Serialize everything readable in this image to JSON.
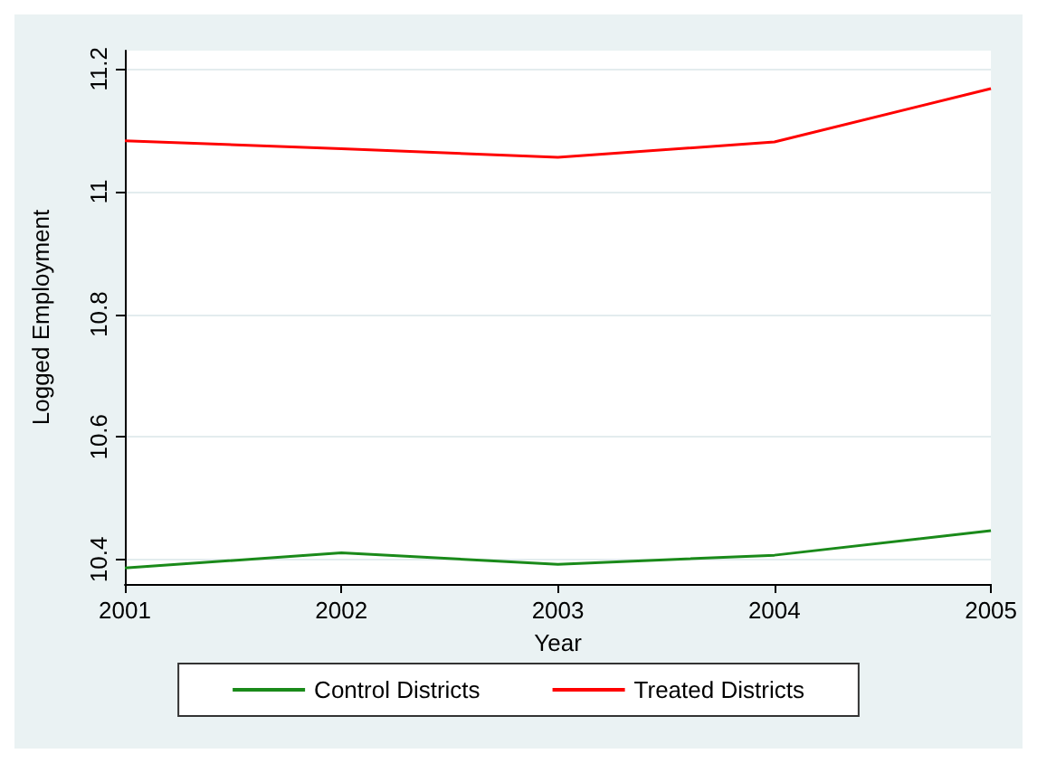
{
  "chart_data": {
    "type": "line",
    "xlabel": "Year",
    "ylabel": "Logged Employment",
    "x": [
      2001,
      2002,
      2003,
      2004,
      2005
    ],
    "series": [
      {
        "name": "Control Districts",
        "color": "#1a8a1a",
        "values": [
          10.386,
          10.411,
          10.392,
          10.407,
          10.447
        ]
      },
      {
        "name": "Treated Districts",
        "color": "#ff0000",
        "values": [
          11.083,
          11.07,
          11.056,
          11.081,
          11.168
        ]
      }
    ],
    "xlim": [
      2001,
      2005
    ],
    "xticks": [
      2001,
      2002,
      2003,
      2004,
      2005
    ],
    "ylim": [
      10.36,
      11.23
    ],
    "yticks": [
      10.4,
      10.6,
      10.8,
      11,
      11.2
    ],
    "grid": "y",
    "legend": "bottom",
    "marker": "none",
    "line_style": "solid"
  }
}
